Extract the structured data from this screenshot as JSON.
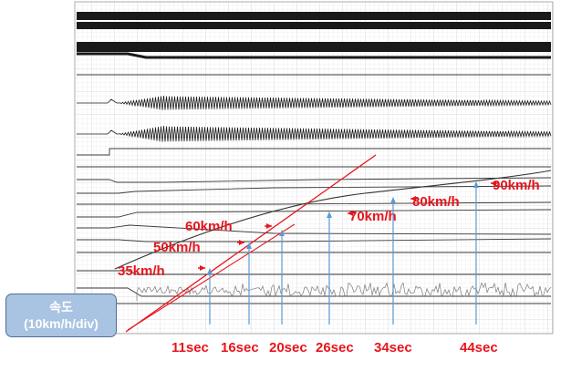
{
  "axis_box": {
    "title": "속도",
    "unit": "(10km/h/div)"
  },
  "chart_data": {
    "type": "line",
    "speed_markers": [
      {
        "speed_kmh": 35,
        "label": "35km/h",
        "time_label": "11sec"
      },
      {
        "speed_kmh": 50,
        "label": "50km/h",
        "time_label": "16sec"
      },
      {
        "speed_kmh": 60,
        "label": "60km/h",
        "time_label": "20sec"
      },
      {
        "speed_kmh": 70,
        "label": "70km/h",
        "time_label": "26sec"
      },
      {
        "speed_kmh": 80,
        "label": "80km/h",
        "time_label": "34sec"
      },
      {
        "speed_kmh": 90,
        "label": "90km/h",
        "time_label": "44sec"
      }
    ]
  },
  "colors": {
    "accent": "#e8141c",
    "marker": "#5b9bd5",
    "axis_box_fill": "#a9c3e2",
    "trace": "#1a1a1a"
  }
}
